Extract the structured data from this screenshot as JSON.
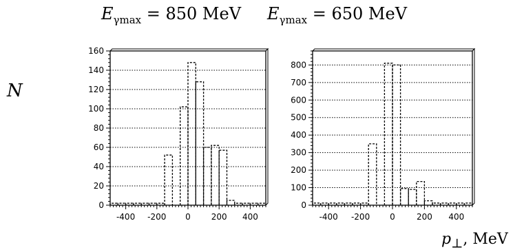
{
  "figure": {
    "ylabel": "N",
    "xlabel_symbol": "p",
    "xlabel_sub": "⊥",
    "xlabel_unit": ", MeV"
  },
  "chart_data": [
    {
      "type": "bar",
      "title_prefix": "E",
      "title_sub": "γmax",
      "title_value": " = 850 MeV",
      "ylabel": "N",
      "xlabel": "p⊥, MeV",
      "xlim": [
        -500,
        500
      ],
      "ylim": [
        0,
        160
      ],
      "yticks": [
        0,
        20,
        40,
        60,
        80,
        100,
        120,
        140,
        160
      ],
      "xticks": [
        -400,
        -200,
        0,
        200,
        400
      ],
      "xtick_labels": [
        "-400",
        "-200",
        "0",
        "200",
        "400"
      ],
      "grid": "horizontal dotted",
      "bin_width": 50,
      "bin_edges": [
        -500,
        -450,
        -400,
        -350,
        -300,
        -250,
        -200,
        -150,
        -100,
        -50,
        0,
        50,
        100,
        150,
        200,
        250,
        300,
        350,
        400,
        450,
        500
      ],
      "values": [
        2,
        2,
        2,
        2,
        2,
        2,
        2,
        52,
        0,
        102,
        148,
        128,
        60,
        62,
        57,
        5,
        2,
        2,
        2,
        2
      ]
    },
    {
      "type": "bar",
      "title_prefix": "E",
      "title_sub": "γmax",
      "title_value": " = 650 MeV",
      "ylabel": "N",
      "xlabel": "p⊥, MeV",
      "xlim": [
        -500,
        500
      ],
      "ylim": [
        0,
        880
      ],
      "yticks": [
        0,
        100,
        200,
        300,
        400,
        500,
        600,
        700,
        800
      ],
      "xticks": [
        -400,
        -200,
        0,
        200,
        400
      ],
      "xtick_labels": [
        "-400",
        "-200",
        "0",
        "200",
        "400"
      ],
      "grid": "horizontal dotted",
      "bin_width": 50,
      "bin_edges": [
        -500,
        -450,
        -400,
        -350,
        -300,
        -250,
        -200,
        -150,
        -100,
        -50,
        0,
        50,
        100,
        150,
        200,
        250,
        300,
        350,
        400,
        450,
        500
      ],
      "values": [
        12,
        12,
        12,
        12,
        12,
        12,
        12,
        350,
        0,
        810,
        800,
        95,
        90,
        135,
        25,
        12,
        12,
        12,
        12,
        12
      ]
    }
  ]
}
